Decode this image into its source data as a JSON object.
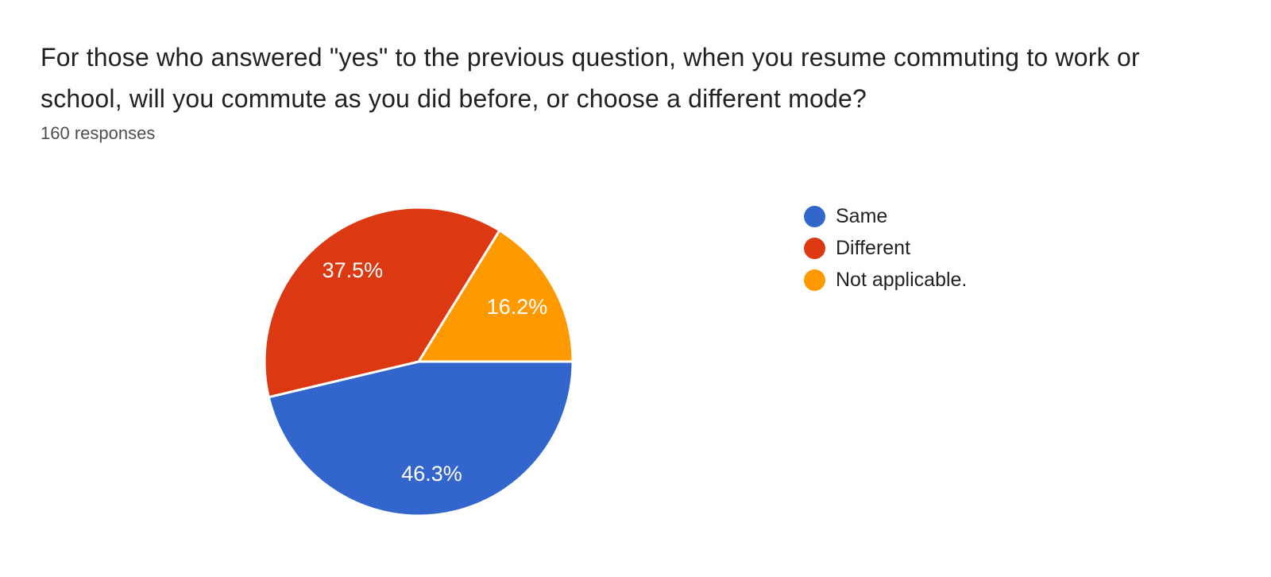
{
  "header": {
    "title": "For those who answered \"yes\" to the previous question, when you resume commuting to work or school, will you commute as you did before, or choose a different mode?",
    "response_count": "160 responses"
  },
  "chart_data": {
    "type": "pie",
    "title": "For those who answered \"yes\" to the previous question, when you resume commuting to work or school, will you commute as you did before, or choose a different mode?",
    "subtitle": "160 responses",
    "responses_total": 160,
    "labels": [
      "Same",
      "Different",
      "Not applicable."
    ],
    "values": [
      46.3,
      37.5,
      16.2
    ],
    "slice_labels": [
      "46.3%",
      "37.5%",
      "16.2%"
    ],
    "colors": [
      "#3366CC",
      "#DC3912",
      "#FF9900"
    ],
    "slice_label_color": "#ffffff",
    "legend_position": "right",
    "start_angle": "east",
    "direction": "clockwise"
  }
}
